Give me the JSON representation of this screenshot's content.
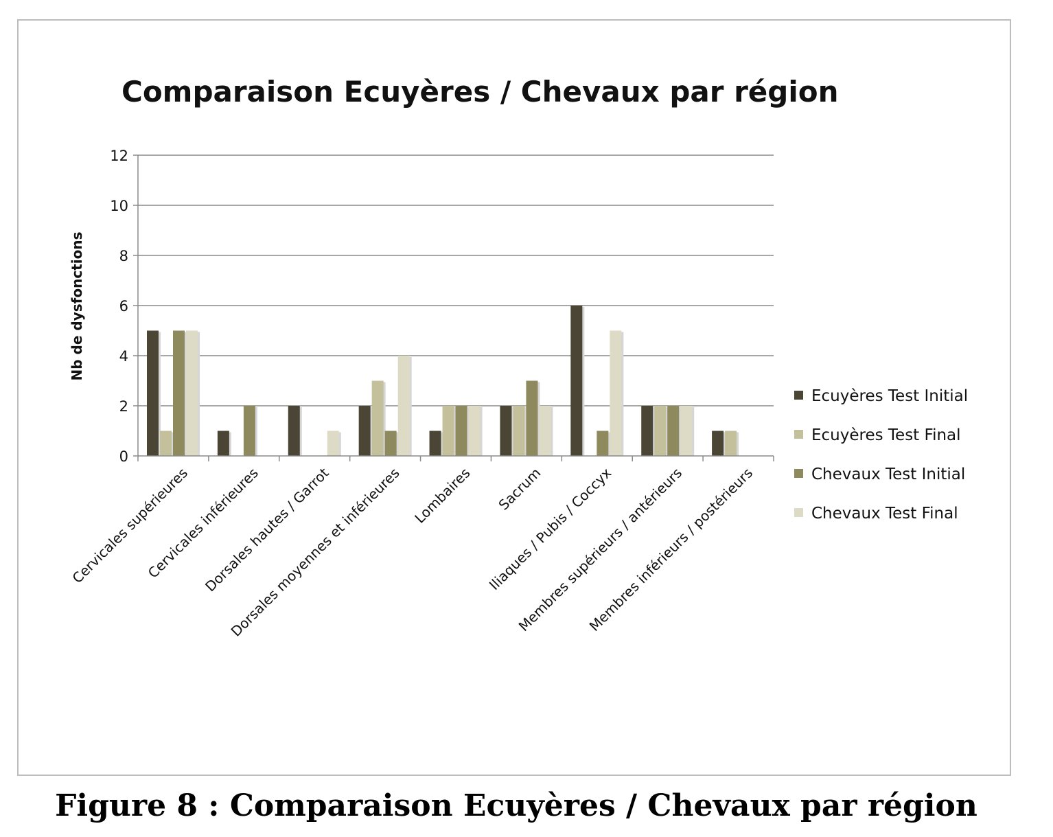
{
  "caption": "Figure 8 : Comparaison Ecuyères / Chevaux par région",
  "chart_data": {
    "type": "bar",
    "title": "Comparaison Ecuyères / Chevaux par région",
    "ylabel": "Nb de dysfonctions",
    "xlabel": "",
    "ylim": [
      0,
      12
    ],
    "yticks": [
      0,
      2,
      4,
      6,
      8,
      10,
      12
    ],
    "grid": true,
    "legend_position": "right",
    "categories": [
      "Cervicales supérieures",
      "Cervicales inférieures",
      "Dorsales hautes / Garrot",
      "Dorsales moyennes et inférieures",
      "Lombaires",
      "Sacrum",
      "Iliaques / Pubis / Coccyx",
      "Membres supérieurs / antérieurs",
      "Membres inférieurs / postérieurs"
    ],
    "series": [
      {
        "name": "Ecuyères Test Initial",
        "color": "#4a4535",
        "values": [
          5,
          1,
          2,
          2,
          1,
          2,
          6,
          2,
          1
        ]
      },
      {
        "name": "Ecuyères Test Final",
        "color": "#c4c09b",
        "values": [
          1,
          0,
          0,
          3,
          2,
          2,
          0,
          2,
          1
        ]
      },
      {
        "name": "Chevaux Test Initial",
        "color": "#8e8a5e",
        "values": [
          5,
          2,
          0,
          1,
          2,
          3,
          1,
          2,
          0
        ]
      },
      {
        "name": "Chevaux Test Final",
        "color": "#dddbc6",
        "values": [
          5,
          0,
          1,
          4,
          2,
          2,
          5,
          2,
          0
        ]
      }
    ]
  }
}
